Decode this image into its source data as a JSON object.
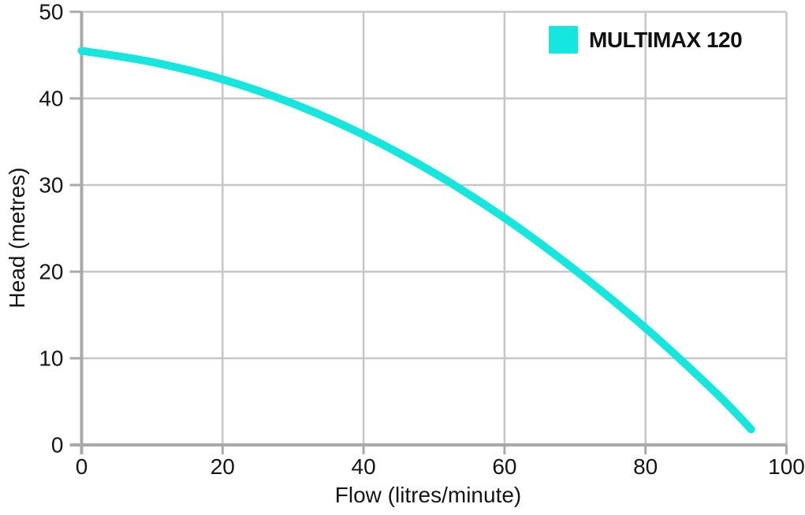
{
  "chart_data": {
    "type": "line",
    "title": "",
    "x": {
      "label": "Flow (litres/minute)",
      "min": 0,
      "max": 100,
      "ticks": [
        0,
        20,
        40,
        60,
        80,
        100
      ]
    },
    "y": {
      "label": "Head (metres)",
      "min": 0,
      "max": 50,
      "ticks": [
        0,
        10,
        20,
        30,
        40,
        50
      ]
    },
    "grid": {
      "x_step": 20,
      "y_step": 10,
      "grid_on": true
    },
    "legend": {
      "position": "top-right"
    },
    "series": [
      {
        "name": "MULTIMAX 120",
        "color": "#15e7de",
        "points": [
          [
            0,
            45.5
          ],
          [
            10,
            44.2
          ],
          [
            20,
            42.2
          ],
          [
            30,
            39.4
          ],
          [
            40,
            35.8
          ],
          [
            50,
            31.4
          ],
          [
            60,
            26.2
          ],
          [
            70,
            20.2
          ],
          [
            80,
            13.5
          ],
          [
            90,
            6.0
          ],
          [
            95,
            1.8
          ]
        ]
      }
    ]
  }
}
